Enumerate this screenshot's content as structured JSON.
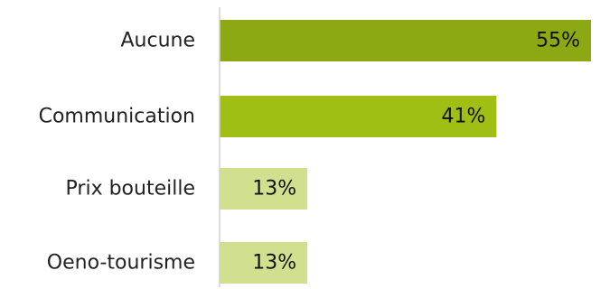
{
  "chart_data": {
    "type": "bar",
    "orientation": "horizontal",
    "categories": [
      "Aucune",
      "Communication",
      "Prix bouteille",
      "Oeno-tourisme"
    ],
    "values": [
      55,
      41,
      13,
      13
    ],
    "value_labels": [
      "55%",
      "41%",
      "13%",
      "13%"
    ],
    "colors": [
      "#8ca813",
      "#a0bf14",
      "#d1e08e",
      "#d1e08e"
    ],
    "axis_color": "#d0d0d0",
    "xlim": [
      0,
      55
    ],
    "grid": false,
    "legend": "none"
  }
}
